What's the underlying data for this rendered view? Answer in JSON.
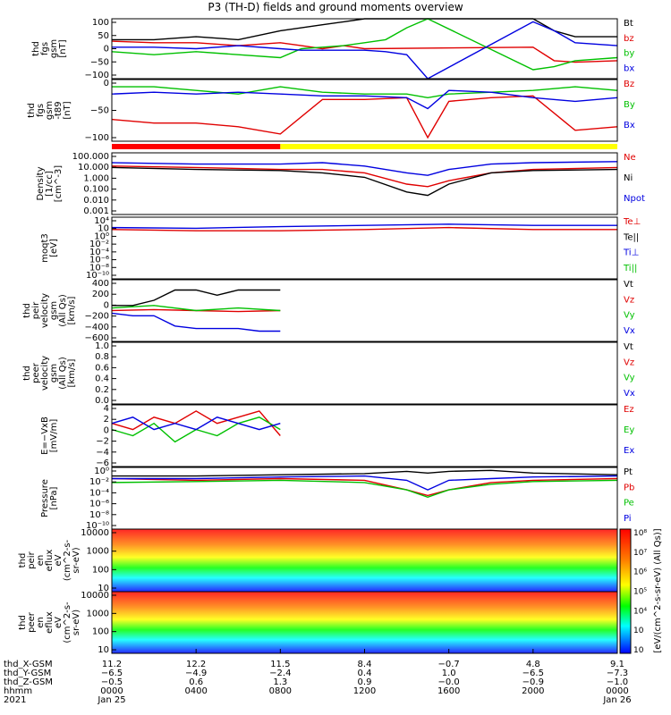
{
  "title": "P3 (TH-D) fields and ground moments overview",
  "panels": [
    {
      "id": "fgs",
      "ylabel": [
        "thd",
        "fgs",
        "gsm",
        "[nT]"
      ],
      "ylim": [
        -100,
        100
      ],
      "ticks": [
        "100",
        "50",
        "0",
        "−50",
        "−100"
      ],
      "legend": [
        {
          "name": "Bt",
          "color": "#000000"
        },
        {
          "name": "bz",
          "color": "#e00000"
        },
        {
          "name": "by",
          "color": "#00c000"
        },
        {
          "name": "bx",
          "color": "#0000e0"
        }
      ]
    },
    {
      "id": "fgs_t89",
      "ylabel": [
        "thd",
        "fgs",
        "gsm",
        "-t89",
        "[nT]"
      ],
      "ylim": [
        -130,
        40
      ],
      "ticks": [
        "0",
        "−50",
        "−100"
      ],
      "legend": [
        {
          "name": "Bz",
          "color": "#e00000"
        },
        {
          "name": "By",
          "color": "#00c000"
        },
        {
          "name": "Bx",
          "color": "#0000e0"
        }
      ]
    },
    {
      "id": "density",
      "ylabel": [
        "Density",
        "[1/cc]",
        "[cm^-3]"
      ],
      "scale": "log",
      "ticks": [
        "100.000",
        "10.000",
        "1.000",
        "0.100",
        "0.010",
        "0.001"
      ],
      "legend": [
        {
          "name": "Ne",
          "color": "#e00000"
        },
        {
          "name": "Ni",
          "color": "#000000"
        },
        {
          "name": "Npot",
          "color": "#0000e0"
        }
      ]
    },
    {
      "id": "temperature",
      "ylabel": [
        "moqt3",
        "[eV]"
      ],
      "scale": "log",
      "ticks": [
        "10⁴",
        "10⁲",
        "10⁰",
        "10⁻²",
        "10⁻⁴",
        "10⁻⁶",
        "10⁻⁸",
        "10⁻¹⁰"
      ],
      "legend": [
        {
          "name": "Te⊥",
          "color": "#e00000"
        },
        {
          "name": "Te||",
          "color": "#000000"
        },
        {
          "name": "Ti⊥",
          "color": "#0000e0"
        },
        {
          "name": "Ti||",
          "color": "#00c000"
        }
      ]
    },
    {
      "id": "peir_velocity",
      "ylabel": [
        "thd",
        "peir",
        "velocity",
        "gsm",
        "(All Qs)",
        "[km/s]"
      ],
      "ylim": [
        -600,
        600
      ],
      "ticks": [
        "400",
        "200",
        "0",
        "−200",
        "−400",
        "−600"
      ],
      "legend": [
        {
          "name": "Vt",
          "color": "#000000"
        },
        {
          "name": "Vz",
          "color": "#e00000"
        },
        {
          "name": "Vy",
          "color": "#00c000"
        },
        {
          "name": "Vx",
          "color": "#0000e0"
        }
      ]
    },
    {
      "id": "peer_velocity",
      "ylabel": [
        "thd",
        "peer",
        "velocity",
        "gsm",
        "(All Qs)",
        "[km/s]"
      ],
      "ylim": [
        0,
        1
      ],
      "ticks": [
        "1.0",
        "0.8",
        "0.6",
        "0.4",
        "0.2",
        "0.0"
      ],
      "legend": [
        {
          "name": "Vt",
          "color": "#000000"
        },
        {
          "name": "Vz",
          "color": "#e00000"
        },
        {
          "name": "Vy",
          "color": "#00c000"
        },
        {
          "name": "Vx",
          "color": "#0000e0"
        }
      ]
    },
    {
      "id": "efield",
      "ylabel": [
        "E=−VxB",
        "[mV/m]"
      ],
      "ylim": [
        -6,
        4
      ],
      "ticks": [
        "4",
        "2",
        "0",
        "−2",
        "−4",
        "−6"
      ],
      "legend": [
        {
          "name": "Ez",
          "color": "#e00000"
        },
        {
          "name": "Ey",
          "color": "#00c000"
        },
        {
          "name": "Ex",
          "color": "#0000e0"
        }
      ]
    },
    {
      "id": "pressure",
      "ylabel": [
        "Pressure",
        "[nPa]"
      ],
      "scale": "log",
      "ticks": [
        "10⁰",
        "10⁻²",
        "10⁻⁴",
        "10⁻⁶",
        "10⁻⁸",
        "10⁻¹⁰"
      ],
      "legend": [
        {
          "name": "Pt",
          "color": "#000000"
        },
        {
          "name": "Pb",
          "color": "#e00000"
        },
        {
          "name": "Pe",
          "color": "#00c000"
        },
        {
          "name": "Pi",
          "color": "#0000e0"
        }
      ]
    },
    {
      "id": "peir_spectrogram",
      "ylabel": [
        "thd",
        "peir",
        "en",
        "eflux",
        "eV",
        "(cm^2-s-",
        "sr-eV)"
      ],
      "scale": "log",
      "ticks": [
        "10000",
        "1000",
        "100",
        "10"
      ]
    },
    {
      "id": "peer_spectrogram",
      "ylabel": [
        "thd",
        "peer",
        "en",
        "eflux",
        "eV",
        "(cm^2-s-",
        "sr-eV)"
      ],
      "scale": "log",
      "ticks": [
        "10000",
        "1000",
        "100",
        "10"
      ]
    }
  ],
  "colorbar": {
    "label": "[eV/(cm^2-s-sr-eV) (All Qs)]",
    "ticks": [
      "10⁸",
      "10⁷",
      "10⁶",
      "10⁵",
      "10⁴",
      "10⁳",
      "10⁲"
    ]
  },
  "x_axis": {
    "row_labels": [
      "thd_X-GSM",
      "thd_Y-GSM",
      "thd_Z-GSM",
      "hhmm",
      "2021"
    ],
    "columns": [
      [
        "11.2",
        "−6.5",
        "−0.5",
        "0000",
        "Jan 25"
      ],
      [
        "12.2",
        "−4.9",
        "0.6",
        "0400",
        ""
      ],
      [
        "11.5",
        "−2.4",
        "1.3",
        "0800",
        ""
      ],
      [
        "8.4",
        "0.4",
        "0.9",
        "1200",
        ""
      ],
      [
        "−0.7",
        "1.0",
        "−0.0",
        "1600",
        ""
      ],
      [
        "4.8",
        "−6.5",
        "−0.9",
        "2000",
        ""
      ],
      [
        "9.1",
        "−7.3",
        "−1.0",
        "0000",
        "Jan 26"
      ]
    ]
  },
  "chart_data": {
    "type": "line",
    "xlabel": "hhmm",
    "x_ticks": [
      "0000",
      "0400",
      "0800",
      "1200",
      "1600",
      "2000",
      "0000"
    ],
    "x_hours": [
      0,
      4,
      8,
      12,
      16,
      20,
      24
    ],
    "mode_bar": [
      {
        "from_hour": 0,
        "to_hour": 8,
        "color": "#ff0000"
      },
      {
        "from_hour": 8,
        "to_hour": 24,
        "color": "#ffff00"
      }
    ],
    "series": [
      {
        "panel": "fgs",
        "name": "Bt",
        "color": "#000000",
        "x": [
          0,
          2,
          4,
          6,
          8,
          9,
          10,
          11,
          12,
          13,
          14,
          15,
          20,
          21,
          22,
          24
        ],
        "y": [
          30,
          30,
          40,
          30,
          60,
          70,
          80,
          90,
          100,
          100,
          100,
          100,
          100,
          60,
          40,
          40
        ]
      },
      {
        "panel": "fgs",
        "name": "bz",
        "color": "#e00000",
        "x": [
          0,
          2,
          4,
          6,
          8,
          9,
          10,
          11,
          12,
          20,
          21,
          22,
          24
        ],
        "y": [
          25,
          20,
          20,
          10,
          20,
          10,
          0,
          10,
          0,
          5,
          -40,
          -45,
          -40
        ]
      },
      {
        "panel": "fgs",
        "name": "by",
        "color": "#00c000",
        "x": [
          0,
          2,
          4,
          6,
          8,
          9,
          10,
          11,
          12,
          13,
          14,
          15,
          20,
          21,
          22,
          24
        ],
        "y": [
          -10,
          -20,
          -10,
          -20,
          -30,
          0,
          5,
          10,
          20,
          30,
          70,
          100,
          -70,
          -60,
          -40,
          -30
        ]
      },
      {
        "panel": "fgs",
        "name": "bx",
        "color": "#0000e0",
        "x": [
          0,
          2,
          4,
          6,
          8,
          9,
          10,
          11,
          12,
          13,
          14,
          15,
          20,
          21,
          22,
          24
        ],
        "y": [
          5,
          5,
          0,
          10,
          0,
          -5,
          -5,
          -5,
          -5,
          -10,
          -20,
          -100,
          90,
          60,
          20,
          10
        ]
      },
      {
        "panel": "fgs_t89",
        "name": "Bz",
        "color": "#e00000",
        "x": [
          0,
          2,
          4,
          6,
          8,
          10,
          12,
          14,
          15,
          16,
          18,
          20,
          22,
          24
        ],
        "y": [
          -70,
          -80,
          -80,
          -90,
          -110,
          -15,
          -15,
          -10,
          -120,
          -20,
          -10,
          -5,
          -100,
          -90
        ]
      },
      {
        "panel": "fgs_t89",
        "name": "By",
        "color": "#00c000",
        "x": [
          0,
          2,
          4,
          6,
          8,
          10,
          12,
          14,
          15,
          16,
          18,
          20,
          22,
          24
        ],
        "y": [
          20,
          20,
          10,
          0,
          20,
          5,
          0,
          0,
          -10,
          0,
          5,
          10,
          20,
          10
        ]
      },
      {
        "panel": "fgs_t89",
        "name": "Bx",
        "color": "#0000e0",
        "x": [
          0,
          2,
          4,
          6,
          8,
          10,
          12,
          14,
          15,
          16,
          18,
          20,
          22,
          24
        ],
        "y": [
          0,
          5,
          0,
          5,
          0,
          -5,
          -5,
          -10,
          -40,
          10,
          5,
          -10,
          -20,
          -10
        ]
      },
      {
        "panel": "density",
        "name": "Ne",
        "color": "#e00000",
        "x": [
          0,
          4,
          8,
          10,
          12,
          14,
          15,
          16,
          18,
          20,
          24
        ],
        "y": [
          20,
          15,
          10,
          10,
          5,
          0.5,
          0.3,
          1,
          5,
          10,
          15
        ]
      },
      {
        "panel": "density",
        "name": "Ni",
        "color": "#000000",
        "x": [
          0,
          4,
          8,
          10,
          12,
          14,
          15,
          16,
          18,
          20,
          24
        ],
        "y": [
          15,
          10,
          8,
          5,
          2,
          0.1,
          0.05,
          0.5,
          5,
          8,
          10
        ]
      },
      {
        "panel": "density",
        "name": "Npot",
        "color": "#0000e0",
        "x": [
          0,
          4,
          8,
          10,
          12,
          14,
          15,
          16,
          18,
          20,
          24
        ],
        "y": [
          40,
          30,
          30,
          40,
          20,
          5,
          3,
          10,
          30,
          40,
          50
        ]
      },
      {
        "panel": "temperature",
        "name": "Te⊥",
        "color": "#e00000",
        "x": [
          0,
          4,
          8,
          12,
          16,
          20,
          24
        ],
        "y": [
          100,
          50,
          50,
          100,
          300,
          100,
          100
        ]
      },
      {
        "panel": "temperature",
        "name": "Ti⊥",
        "color": "#0000e0",
        "x": [
          0,
          4,
          8,
          12,
          16,
          20,
          24
        ],
        "y": [
          300,
          200,
          500,
          1000,
          2000,
          1000,
          1000
        ]
      },
      {
        "panel": "peir_velocity",
        "name": "Vt",
        "color": "#000000",
        "x": [
          0,
          1,
          2,
          3,
          4,
          5,
          6,
          7,
          8
        ],
        "y": [
          100,
          100,
          200,
          400,
          400,
          300,
          400,
          400,
          400
        ]
      },
      {
        "panel": "peir_velocity",
        "name": "Vz",
        "color": "#e00000",
        "x": [
          0,
          2,
          4,
          6,
          8
        ],
        "y": [
          0,
          20,
          0,
          -20,
          0
        ]
      },
      {
        "panel": "peir_velocity",
        "name": "Vy",
        "color": "#00c000",
        "x": [
          0,
          2,
          4,
          6,
          8
        ],
        "y": [
          50,
          100,
          0,
          50,
          0
        ]
      },
      {
        "panel": "peir_velocity",
        "name": "Vx",
        "color": "#0000e0",
        "x": [
          0,
          1,
          2,
          3,
          4,
          5,
          6,
          7,
          8
        ],
        "y": [
          -50,
          -100,
          -100,
          -300,
          -350,
          -350,
          -350,
          -400,
          -400
        ]
      },
      {
        "panel": "efield",
        "name": "Ez",
        "color": "#e00000",
        "x": [
          0,
          1,
          2,
          3,
          4,
          5,
          6,
          7,
          8
        ],
        "y": [
          1,
          0,
          2,
          1,
          3,
          1,
          2,
          3,
          -1
        ]
      },
      {
        "panel": "efield",
        "name": "Ey",
        "color": "#00c000",
        "x": [
          0,
          1,
          2,
          3,
          4,
          5,
          6,
          7,
          8
        ],
        "y": [
          0,
          -1,
          1,
          -2,
          0,
          -1,
          1,
          2,
          0
        ]
      },
      {
        "panel": "efield",
        "name": "Ex",
        "color": "#0000e0",
        "x": [
          0,
          1,
          2,
          3,
          4,
          5,
          6,
          7,
          8
        ],
        "y": [
          1,
          2,
          0,
          1,
          0,
          2,
          1,
          0,
          1
        ]
      },
      {
        "panel": "pressure",
        "name": "Pt",
        "color": "#000000",
        "x": [
          0,
          4,
          8,
          12,
          14,
          15,
          16,
          18,
          20,
          24
        ],
        "y": [
          0.3,
          0.3,
          0.5,
          0.8,
          2,
          1,
          2,
          3,
          1,
          0.5
        ]
      },
      {
        "panel": "pressure",
        "name": "Pb",
        "color": "#e00000",
        "x": [
          0,
          4,
          8,
          12,
          14,
          15,
          16,
          18,
          20,
          24
        ],
        "y": [
          0.1,
          0.05,
          0.1,
          0.05,
          0.001,
          0.0001,
          0.001,
          0.02,
          0.05,
          0.1
        ]
      },
      {
        "panel": "pressure",
        "name": "Pe",
        "color": "#00c000",
        "x": [
          0,
          4,
          8,
          12,
          14,
          15,
          16,
          18,
          20,
          24
        ],
        "y": [
          0.02,
          0.03,
          0.05,
          0.02,
          0.001,
          5e-05,
          0.001,
          0.01,
          0.03,
          0.05
        ]
      },
      {
        "panel": "pressure",
        "name": "Pi",
        "color": "#0000e0",
        "x": [
          0,
          4,
          8,
          12,
          14,
          15,
          16,
          18,
          20,
          24
        ],
        "y": [
          0.1,
          0.1,
          0.2,
          0.3,
          0.05,
          0.001,
          0.05,
          0.1,
          0.2,
          0.3
        ]
      }
    ]
  }
}
